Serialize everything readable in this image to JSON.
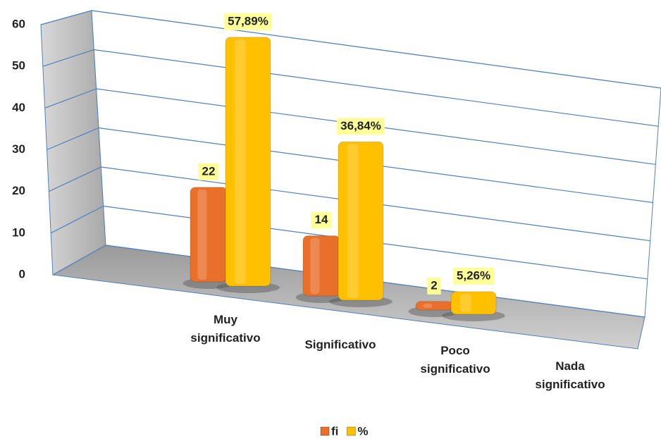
{
  "chart_data": {
    "type": "bar",
    "categories": [
      "Muy significativo",
      "Significativo",
      "Poco significativo",
      "Nada significativo"
    ],
    "series": [
      {
        "name": "fi",
        "color": "#e8702a",
        "values": [
          22,
          14,
          2,
          null
        ]
      },
      {
        "name": "%",
        "color": "#ffc000",
        "values": [
          57.89,
          36.84,
          5.26,
          null
        ],
        "value_labels": [
          "57,89%",
          "36,84%",
          "5,26%",
          null
        ]
      }
    ],
    "ylim": [
      0,
      60
    ],
    "yticks": [
      0,
      10,
      20,
      30,
      40,
      50,
      60
    ],
    "grid": true,
    "legend": "bottom"
  }
}
